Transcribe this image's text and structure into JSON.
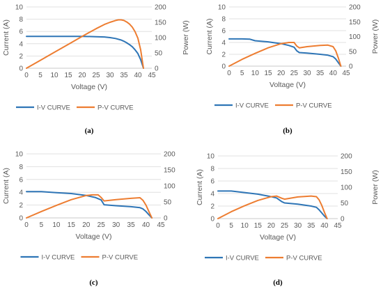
{
  "chart_data": [
    {
      "type": "line",
      "label": "(a)",
      "xlabel": "Voltage (V)",
      "ylabel": "Current (A)",
      "y2label": "Power (W)",
      "xlim": [
        0,
        45
      ],
      "ylim": [
        0,
        10
      ],
      "y2lim": [
        0,
        200
      ],
      "xticks": [
        0,
        5,
        10,
        15,
        20,
        25,
        30,
        35,
        40,
        45
      ],
      "yticks": [
        0,
        2,
        4,
        6,
        8,
        10
      ],
      "y2ticks": [
        0,
        50,
        100,
        150,
        200
      ],
      "grid": true,
      "legend": "bottom",
      "series": [
        {
          "name": "I-V CURVE",
          "axis": "left",
          "color": "#2E75B6",
          "x": [
            0,
            5,
            10,
            15,
            20,
            25,
            28,
            30,
            32,
            34,
            35,
            36,
            37,
            38,
            39,
            40,
            41,
            42
          ],
          "y": [
            5.2,
            5.2,
            5.2,
            5.2,
            5.2,
            5.15,
            5.1,
            5.0,
            4.85,
            4.6,
            4.4,
            4.15,
            3.85,
            3.5,
            3.0,
            2.4,
            1.4,
            0
          ]
        },
        {
          "name": "P-V CURVE",
          "axis": "right",
          "color": "#ED7D31",
          "x": [
            0,
            5,
            10,
            15,
            20,
            25,
            28,
            30,
            32,
            33,
            34,
            35,
            36,
            37,
            38,
            39,
            40,
            41,
            42
          ],
          "y": [
            0,
            26,
            52,
            78,
            104,
            129,
            143,
            150,
            156,
            158,
            158,
            156,
            151,
            144,
            134,
            119,
            98,
            60,
            0
          ]
        }
      ]
    },
    {
      "type": "line",
      "label": "(b)",
      "xlabel": "Voltage (V)",
      "ylabel": "Current (A)",
      "y2label": "Power (W)",
      "xlim": [
        0,
        45
      ],
      "ylim": [
        0,
        10
      ],
      "y2lim": [
        0,
        200
      ],
      "xticks": [
        0,
        5,
        10,
        15,
        20,
        25,
        30,
        35,
        40,
        45
      ],
      "yticks": [
        0,
        2,
        4,
        6,
        8,
        10
      ],
      "y2ticks": [
        0,
        50,
        100,
        150,
        200
      ],
      "grid": true,
      "legend": "bottom",
      "series": [
        {
          "name": "I-V CURVE",
          "axis": "left",
          "color": "#2E75B6",
          "x": [
            0,
            5,
            8,
            10,
            15,
            20,
            23,
            25,
            26,
            27,
            30,
            35,
            38,
            40,
            41,
            42,
            43
          ],
          "y": [
            4.6,
            4.6,
            4.55,
            4.3,
            4.1,
            3.8,
            3.5,
            3.2,
            2.6,
            2.3,
            2.2,
            2.0,
            1.85,
            1.6,
            1.2,
            0.6,
            0
          ]
        },
        {
          "name": "P-V CURVE",
          "axis": "right",
          "color": "#ED7D31",
          "x": [
            0,
            5,
            10,
            15,
            20,
            23,
            25,
            26,
            27,
            30,
            35,
            38,
            40,
            41,
            42,
            43
          ],
          "y": [
            0,
            23,
            43,
            62,
            76,
            80,
            80,
            68,
            62,
            66,
            70,
            71,
            66,
            52,
            28,
            0
          ]
        }
      ]
    },
    {
      "type": "line",
      "label": "(c)",
      "xlabel": "Voltage (V)",
      "ylabel": "Current (A)",
      "y2label": "",
      "xlim": [
        0,
        45
      ],
      "ylim": [
        0,
        10
      ],
      "y2lim": [
        0,
        200
      ],
      "xticks": [
        0,
        5,
        10,
        15,
        20,
        25,
        30,
        35,
        40,
        45
      ],
      "yticks": [
        0,
        2,
        4,
        6,
        8,
        10
      ],
      "y2ticks": [
        0,
        50,
        100,
        150,
        200
      ],
      "grid": true,
      "legend": "bottom",
      "series": [
        {
          "name": "I-V CURVE",
          "axis": "left",
          "color": "#2E75B6",
          "x": [
            0,
            5,
            10,
            15,
            20,
            23,
            25,
            26,
            30,
            35,
            38,
            39,
            40,
            41,
            42
          ],
          "y": [
            4.1,
            4.1,
            3.95,
            3.8,
            3.5,
            3.2,
            2.8,
            2.05,
            1.9,
            1.75,
            1.6,
            1.4,
            1.0,
            0.5,
            0
          ]
        },
        {
          "name": "P-V CURVE",
          "axis": "right",
          "color": "#ED7D31",
          "x": [
            0,
            5,
            10,
            15,
            20,
            22,
            24,
            25,
            26,
            30,
            35,
            38,
            39,
            40,
            41,
            42
          ],
          "y": [
            0,
            20,
            39,
            57,
            70,
            72,
            72,
            64,
            53,
            57,
            61,
            63,
            55,
            40,
            20,
            0
          ]
        }
      ]
    },
    {
      "type": "line",
      "label": "(d)",
      "xlabel": "Voltage (V)",
      "ylabel": "Current (A)",
      "y2label": "Power (W)",
      "xlim": [
        0,
        45
      ],
      "ylim": [
        0,
        10
      ],
      "y2lim": [
        0,
        200
      ],
      "xticks": [
        0,
        5,
        10,
        15,
        20,
        25,
        30,
        35,
        40,
        45
      ],
      "yticks": [
        0,
        2,
        4,
        6,
        8,
        10
      ],
      "y2ticks": [
        0,
        50,
        100,
        150,
        200
      ],
      "grid": true,
      "legend": "bottom",
      "series": [
        {
          "name": "I-V CURVE",
          "axis": "left",
          "color": "#2E75B6",
          "x": [
            0,
            5,
            10,
            15,
            20,
            22,
            24,
            25,
            30,
            35,
            37,
            38,
            39,
            40,
            41
          ],
          "y": [
            4.4,
            4.4,
            4.15,
            3.9,
            3.5,
            3.3,
            2.7,
            2.5,
            2.3,
            2.0,
            1.8,
            1.4,
            0.9,
            0.4,
            0
          ]
        },
        {
          "name": "P-V CURVE",
          "axis": "right",
          "color": "#ED7D31",
          "x": [
            0,
            5,
            10,
            15,
            20,
            22,
            24,
            25,
            30,
            35,
            37,
            38,
            39,
            40,
            41
          ],
          "y": [
            0,
            22,
            41,
            58,
            70,
            72,
            65,
            62,
            69,
            72,
            70,
            60,
            42,
            20,
            0
          ]
        }
      ]
    }
  ]
}
